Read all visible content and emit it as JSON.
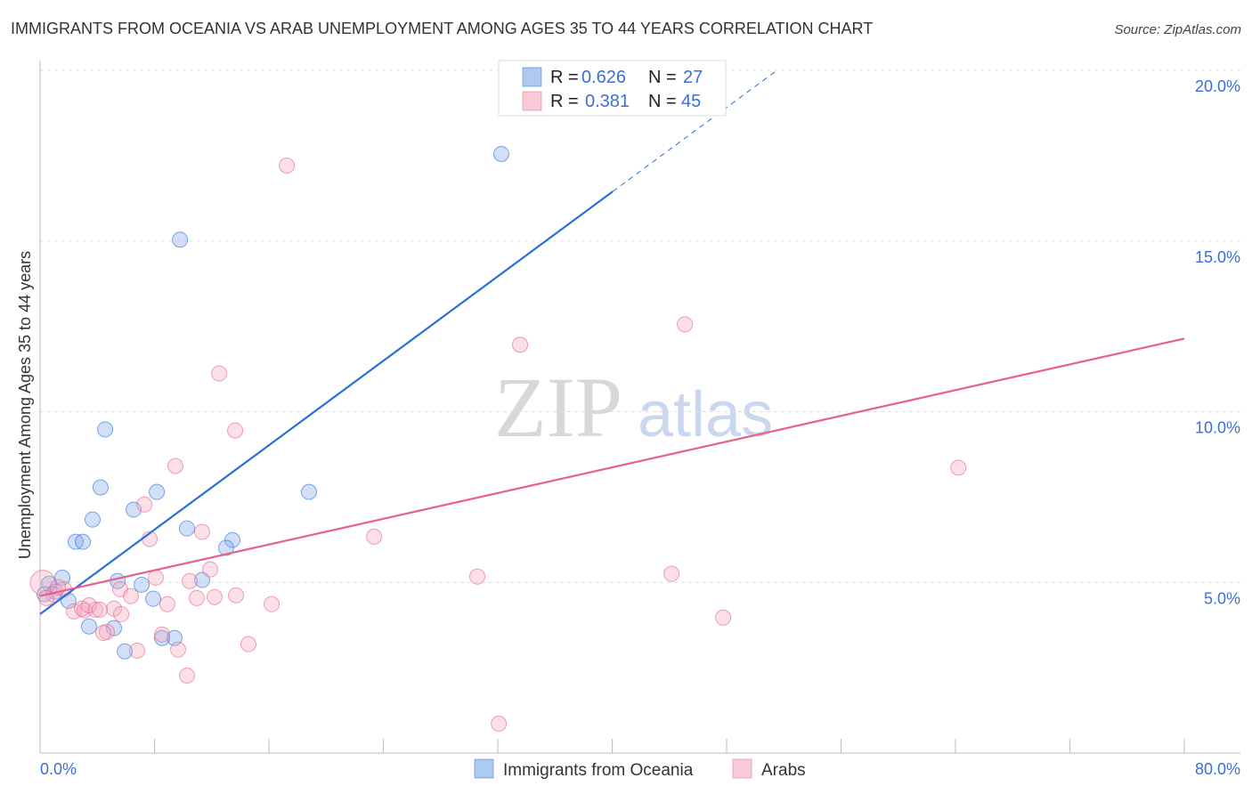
{
  "title": "IMMIGRANTS FROM OCEANIA VS ARAB UNEMPLOYMENT AMONG AGES 35 TO 44 YEARS CORRELATION CHART",
  "source": "Source: ZipAtlas.com",
  "watermark": "ZIPatlas",
  "chart_data": {
    "type": "scatter",
    "title": "IMMIGRANTS FROM OCEANIA VS ARAB UNEMPLOYMENT AMONG AGES 35 TO 44 YEARS CORRELATION CHART",
    "xlabel": "",
    "ylabel": "Unemployment Among Ages 35 to 44 years",
    "xlim": [
      0,
      80
    ],
    "ylim": [
      0,
      20
    ],
    "x_tick_labels": [
      "0.0%",
      "80.0%"
    ],
    "y_ticks": [
      5,
      10,
      15,
      20
    ],
    "y_tick_labels": [
      "5.0%",
      "10.0%",
      "15.0%",
      "20.0%"
    ],
    "grid": true,
    "legend_placement": "top-center",
    "series": [
      {
        "name": "Immigrants from Oceania",
        "color": "#7aa6e8",
        "line_color": "#2a6fd6",
        "R": "0.626",
        "N": "27",
        "trend": {
          "x0": 0,
          "y0": 4.07,
          "x1": 40.04,
          "y1": 16.45,
          "dashed_to_x": 51.5
        },
        "points": [
          [
            32.25,
            17.55
          ],
          [
            9.78,
            15.04
          ],
          [
            4.55,
            9.48
          ],
          [
            4.23,
            7.78
          ],
          [
            8.16,
            7.65
          ],
          [
            18.8,
            7.65
          ],
          [
            6.54,
            7.13
          ],
          [
            3.67,
            6.84
          ],
          [
            2.49,
            6.19
          ],
          [
            2.99,
            6.19
          ],
          [
            10.27,
            6.58
          ],
          [
            13.45,
            6.24
          ],
          [
            13.01,
            6.01
          ],
          [
            1.56,
            5.14
          ],
          [
            0.62,
            4.96
          ],
          [
            5.42,
            5.04
          ],
          [
            7.1,
            4.93
          ],
          [
            11.33,
            5.07
          ],
          [
            1.06,
            4.73
          ],
          [
            1.99,
            4.46
          ],
          [
            7.91,
            4.52
          ],
          [
            3.42,
            3.71
          ],
          [
            5.17,
            3.66
          ],
          [
            8.53,
            3.37
          ],
          [
            9.4,
            3.37
          ],
          [
            5.92,
            2.98
          ],
          [
            0.31,
            4.65
          ]
        ]
      },
      {
        "name": "Arabs",
        "color": "#f3a6bd",
        "line_color": "#e8608a",
        "R": "0.381",
        "N": "45",
        "trend": {
          "x0": 0,
          "y0": 4.6,
          "x1": 80,
          "y1": 12.14
        },
        "points": [
          [
            17.25,
            17.21
          ],
          [
            45.08,
            12.56
          ],
          [
            33.56,
            11.96
          ],
          [
            12.52,
            11.12
          ],
          [
            13.64,
            9.45
          ],
          [
            9.46,
            8.41
          ],
          [
            64.2,
            8.36
          ],
          [
            7.29,
            7.28
          ],
          [
            7.66,
            6.27
          ],
          [
            11.33,
            6.48
          ],
          [
            23.35,
            6.34
          ],
          [
            11.89,
            5.38
          ],
          [
            30.57,
            5.17
          ],
          [
            44.15,
            5.25
          ],
          [
            8.09,
            5.14
          ],
          [
            10.46,
            5.04
          ],
          [
            5.6,
            4.8
          ],
          [
            6.35,
            4.6
          ],
          [
            12.2,
            4.57
          ],
          [
            13.7,
            4.62
          ],
          [
            10.96,
            4.54
          ],
          [
            16.19,
            4.36
          ],
          [
            8.9,
            4.36
          ],
          [
            5.17,
            4.23
          ],
          [
            2.37,
            4.15
          ],
          [
            3.11,
            4.18
          ],
          [
            3.86,
            4.2
          ],
          [
            2.93,
            4.23
          ],
          [
            47.76,
            3.97
          ],
          [
            4.67,
            3.55
          ],
          [
            4.42,
            3.52
          ],
          [
            8.53,
            3.47
          ],
          [
            14.57,
            3.19
          ],
          [
            6.79,
            3.0
          ],
          [
            9.65,
            3.03
          ],
          [
            10.27,
            2.27
          ],
          [
            32.07,
            0.86
          ],
          [
            0.19,
            4.99
          ],
          [
            0.93,
            4.65
          ],
          [
            1.68,
            4.8
          ],
          [
            0.44,
            4.54
          ],
          [
            1.25,
            4.86
          ],
          [
            3.42,
            4.33
          ],
          [
            5.67,
            4.07
          ],
          [
            4.17,
            4.2
          ]
        ]
      }
    ]
  },
  "legend": {
    "r_label": "R =",
    "n_label": "N ="
  }
}
